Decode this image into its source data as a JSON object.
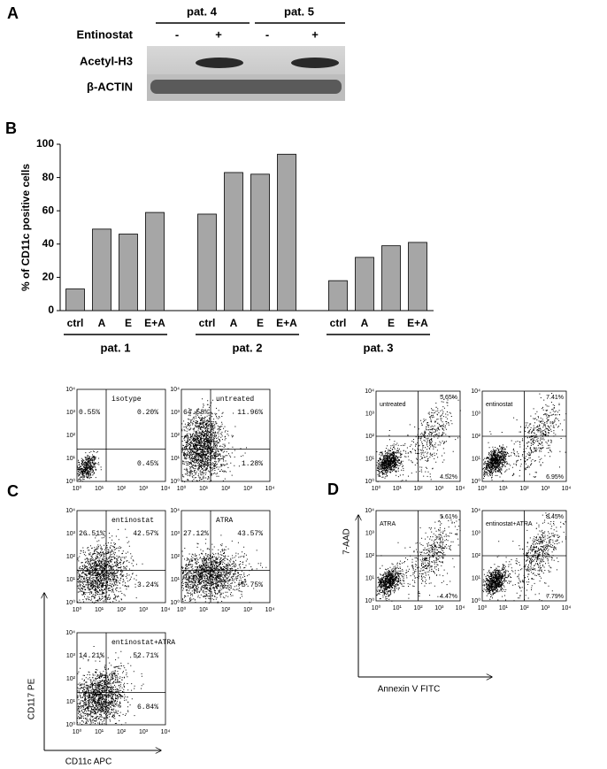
{
  "panel_a": {
    "label": "A",
    "patients": [
      "pat. 4",
      "pat. 5"
    ],
    "treatment": "Entinostat",
    "lanes": [
      "-",
      "+",
      "-",
      "+"
    ],
    "rows": [
      "Acetyl-H3",
      "β-ACTIN"
    ]
  },
  "chart_data": {
    "type": "bar",
    "panel_label": "B",
    "ylabel": "% of CD11c positive cells",
    "categories": [
      "ctrl",
      "A",
      "E",
      "E+A",
      "ctrl",
      "A",
      "E",
      "E+A",
      "ctrl",
      "A",
      "E",
      "E+A"
    ],
    "values": [
      13,
      49,
      46,
      59,
      58,
      83,
      82,
      94,
      18,
      32,
      39,
      41
    ],
    "groups": [
      "pat. 1",
      "pat. 2",
      "pat. 3"
    ],
    "color": "#a6a6a6",
    "ylim": [
      0,
      100
    ],
    "yticks": [
      0,
      20,
      40,
      60,
      80,
      100
    ]
  },
  "panel_c": {
    "label": "C",
    "xlabel": "CD11c APC",
    "ylabel": "CD117 PE",
    "axis_ticks": [
      "10⁰",
      "10¹",
      "10²",
      "10³",
      "10⁴"
    ],
    "plots": [
      {
        "label": "isotype",
        "upper_left": "0.55%",
        "upper_right": "0.20%",
        "lower_right": "0.45%"
      },
      {
        "label": "untreated",
        "upper_left": "64.58%",
        "upper_right": "11.96%",
        "lower_right": "1.28%"
      },
      {
        "label": "entinostat",
        "upper_left": "26.51%",
        "upper_right": "42.57%",
        "lower_right": "3.24%"
      },
      {
        "label": "ATRA",
        "upper_left": "27.12%",
        "upper_right": "43.57%",
        "lower_right": "5.75%"
      },
      {
        "label": "entinostat+ATRA",
        "upper_left": "14.21%",
        "upper_right": "52.71%",
        "lower_right": "6.84%"
      }
    ]
  },
  "panel_d": {
    "label": "D",
    "xlabel": "Annexin V FITC",
    "ylabel": "7-AAD",
    "axis_ticks": [
      "10⁰",
      "10¹",
      "10²",
      "10³",
      "10⁴"
    ],
    "plots": [
      {
        "label": "untreated",
        "upper_right": "5.65%",
        "lower_right": "4.52%"
      },
      {
        "label": "entinostat",
        "upper_right": "7.41%",
        "lower_right": "6.95%"
      },
      {
        "label": "ATRA",
        "upper_right": "5.61%",
        "lower_right": "4.47%"
      },
      {
        "label": "entinostat+ATRA",
        "upper_right": "8.45%",
        "lower_right": "7.79%"
      }
    ]
  }
}
